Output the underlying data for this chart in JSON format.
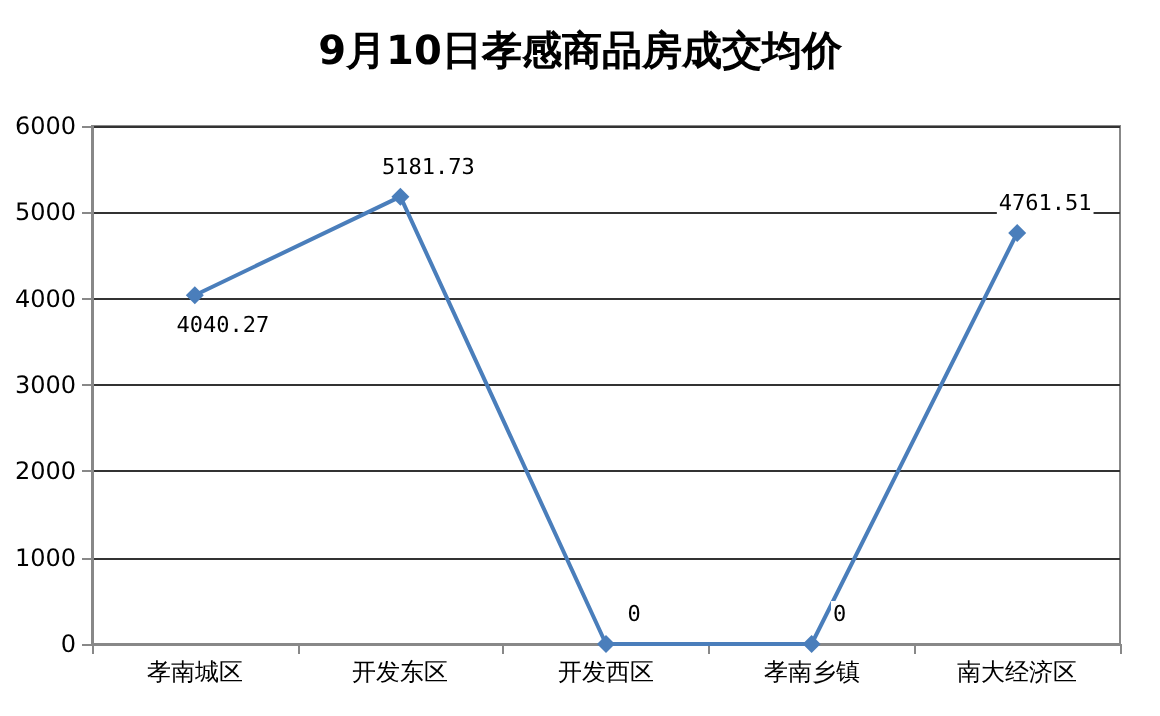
{
  "chart_data": {
    "type": "line",
    "title": "9月10日孝感商品房成交均价",
    "categories": [
      "孝南城区",
      "开发东区",
      "开发西区",
      "孝南乡镇",
      "南大经济区"
    ],
    "series": [
      {
        "color": "#4a7ebb",
        "values": [
          4040.27,
          5181.73,
          0,
          0,
          4761.51
        ]
      }
    ],
    "ylim": [
      0,
      6000
    ],
    "yticks": [
      0,
      1000,
      2000,
      3000,
      4000,
      5000,
      6000
    ],
    "grid": "y",
    "marker": "diamond",
    "line_style": "solid",
    "data_labels": true
  }
}
